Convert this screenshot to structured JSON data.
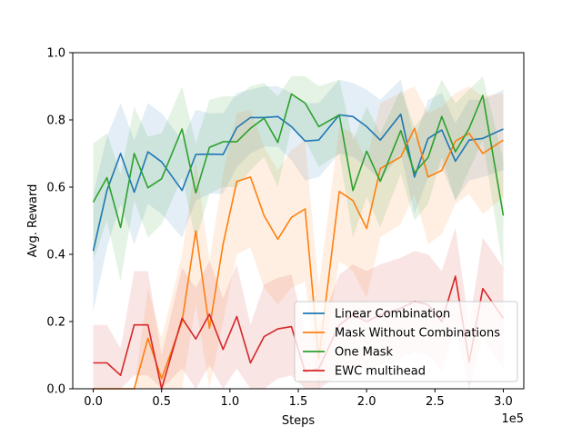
{
  "chart_data": {
    "type": "line",
    "title": "",
    "xlabel": "Steps",
    "ylabel": "Avg. Reward",
    "x_offset_label": "1e5",
    "xlim": [
      -0.15,
      3.15
    ],
    "ylim": [
      0.0,
      1.0
    ],
    "xticks": [
      0.0,
      0.5,
      1.0,
      1.5,
      2.0,
      2.5,
      3.0
    ],
    "xtick_labels": [
      "0.0",
      "0.5",
      "1.0",
      "1.5",
      "2.0",
      "2.5",
      "3.0"
    ],
    "yticks": [
      0.0,
      0.2,
      0.4,
      0.6,
      0.8,
      1.0
    ],
    "ytick_labels": [
      "0.0",
      "0.2",
      "0.4",
      "0.6",
      "0.8",
      "1.0"
    ],
    "grid": false,
    "legend_position": "bottom-right",
    "x": [
      0.0,
      0.1,
      0.2,
      0.3,
      0.4,
      0.5,
      0.65,
      0.75,
      0.85,
      0.95,
      1.05,
      1.15,
      1.25,
      1.35,
      1.45,
      1.55,
      1.65,
      1.8,
      1.9,
      2.0,
      2.1,
      2.25,
      2.35,
      2.45,
      2.55,
      2.65,
      2.75,
      2.85,
      3.0
    ],
    "series": [
      {
        "name": "Linear Combination",
        "color": "#1f77b4",
        "values": [
          0.41,
          0.59,
          0.7,
          0.585,
          0.705,
          0.675,
          0.59,
          0.697,
          0.698,
          0.697,
          0.777,
          0.807,
          0.807,
          0.81,
          0.78,
          0.737,
          0.74,
          0.815,
          0.81,
          0.78,
          0.74,
          0.817,
          0.63,
          0.745,
          0.77,
          0.677,
          0.74,
          0.745,
          0.773
        ],
        "lower": [
          0.23,
          0.42,
          0.55,
          0.43,
          0.55,
          0.52,
          0.45,
          0.56,
          0.58,
          0.58,
          0.66,
          0.7,
          0.72,
          0.72,
          0.68,
          0.62,
          0.63,
          0.7,
          0.69,
          0.66,
          0.62,
          0.7,
          0.52,
          0.63,
          0.66,
          0.56,
          0.62,
          0.63,
          0.65
        ],
        "upper": [
          0.58,
          0.75,
          0.85,
          0.74,
          0.85,
          0.82,
          0.74,
          0.83,
          0.82,
          0.82,
          0.88,
          0.89,
          0.9,
          0.9,
          0.88,
          0.85,
          0.85,
          0.92,
          0.91,
          0.89,
          0.86,
          0.92,
          0.74,
          0.86,
          0.88,
          0.79,
          0.86,
          0.86,
          0.89
        ]
      },
      {
        "name": "Mask Without Combinations",
        "color": "#ff7f0e",
        "values": [
          0.0,
          0.0,
          0.0,
          0.0,
          0.15,
          0.03,
          0.2,
          0.47,
          0.18,
          0.43,
          0.617,
          0.63,
          0.515,
          0.445,
          0.51,
          0.535,
          0.09,
          0.587,
          0.56,
          0.477,
          0.655,
          0.69,
          0.775,
          0.63,
          0.65,
          0.737,
          0.76,
          0.7,
          0.74
        ],
        "lower": [
          0.0,
          0.0,
          0.0,
          0.0,
          0.0,
          0.0,
          0.0,
          0.25,
          0.0,
          0.2,
          0.4,
          0.42,
          0.3,
          0.25,
          0.3,
          0.32,
          0.0,
          0.38,
          0.35,
          0.27,
          0.45,
          0.49,
          0.58,
          0.43,
          0.46,
          0.55,
          0.58,
          0.52,
          0.57
        ],
        "upper": [
          0.0,
          0.0,
          0.0,
          0.0,
          0.3,
          0.15,
          0.4,
          0.68,
          0.38,
          0.64,
          0.82,
          0.83,
          0.72,
          0.65,
          0.71,
          0.74,
          0.3,
          0.78,
          0.76,
          0.68,
          0.85,
          0.88,
          0.9,
          0.82,
          0.84,
          0.88,
          0.9,
          0.87,
          0.88
        ]
      },
      {
        "name": "One Mask",
        "color": "#2ca02c",
        "values": [
          0.555,
          0.628,
          0.48,
          0.7,
          0.598,
          0.625,
          0.773,
          0.583,
          0.718,
          0.735,
          0.735,
          0.775,
          0.805,
          0.733,
          0.877,
          0.85,
          0.78,
          0.815,
          0.59,
          0.707,
          0.617,
          0.768,
          0.643,
          0.688,
          0.81,
          0.705,
          0.775,
          0.873,
          0.515
        ],
        "lower": [
          0.38,
          0.5,
          0.32,
          0.56,
          0.45,
          0.49,
          0.63,
          0.44,
          0.58,
          0.6,
          0.6,
          0.65,
          0.69,
          0.6,
          0.78,
          0.74,
          0.66,
          0.7,
          0.45,
          0.57,
          0.48,
          0.64,
          0.5,
          0.55,
          0.69,
          0.56,
          0.65,
          0.74,
          0.35
        ],
        "upper": [
          0.73,
          0.76,
          0.64,
          0.84,
          0.75,
          0.76,
          0.9,
          0.73,
          0.86,
          0.87,
          0.87,
          0.9,
          0.91,
          0.87,
          0.93,
          0.93,
          0.9,
          0.92,
          0.74,
          0.84,
          0.76,
          0.89,
          0.78,
          0.83,
          0.92,
          0.85,
          0.89,
          0.93,
          0.68
        ]
      },
      {
        "name": "EWC multihead",
        "color": "#d62728",
        "values": [
          0.077,
          0.077,
          0.04,
          0.19,
          0.19,
          0.0,
          0.21,
          0.148,
          0.222,
          0.117,
          0.215,
          0.077,
          0.155,
          0.178,
          0.185,
          0.05,
          0.06,
          0.19,
          0.22,
          0.2,
          0.22,
          0.24,
          0.26,
          0.25,
          0.2,
          0.335,
          0.08,
          0.298,
          0.21
        ],
        "lower": [
          0.0,
          0.0,
          0.0,
          0.04,
          0.04,
          0.0,
          0.06,
          0.0,
          0.07,
          0.0,
          0.06,
          0.0,
          0.0,
          0.03,
          0.04,
          0.0,
          0.0,
          0.04,
          0.07,
          0.05,
          0.07,
          0.09,
          0.11,
          0.1,
          0.05,
          0.19,
          0.0,
          0.15,
          0.06
        ],
        "upper": [
          0.19,
          0.19,
          0.12,
          0.35,
          0.35,
          0.1,
          0.36,
          0.3,
          0.38,
          0.27,
          0.37,
          0.19,
          0.31,
          0.33,
          0.34,
          0.17,
          0.18,
          0.34,
          0.37,
          0.35,
          0.37,
          0.39,
          0.41,
          0.4,
          0.35,
          0.48,
          0.19,
          0.45,
          0.36
        ]
      }
    ]
  }
}
